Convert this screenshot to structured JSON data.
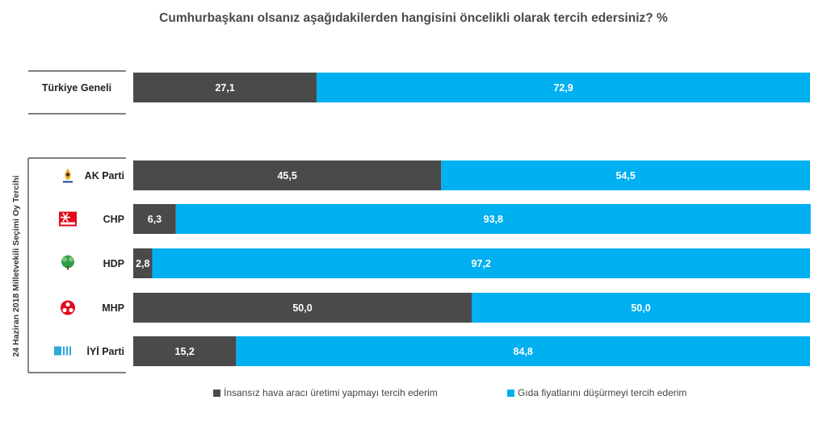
{
  "colors": {
    "drone": "#4a4a4a",
    "food": "#00b0f0",
    "rule": "#555555"
  },
  "chart_data": {
    "type": "bar",
    "stacked": true,
    "orientation": "horizontal",
    "title": "Cumhurbaşkanı olsanız aşağıdakilerden hangisini öncelikli olarak tercih edersiniz? %",
    "group_label": "24 Haziran 2018 Milletvekili Seçimi Oy Tercihi",
    "categories": [
      "Türkiye Geneli",
      "AK Parti",
      "CHP",
      "HDP",
      "MHP",
      "İYİ Parti"
    ],
    "category_icons": [
      "",
      "akparti-logo-icon",
      "chp-logo-icon",
      "hdp-logo-icon",
      "mhp-logo-icon",
      "iyi-logo-icon"
    ],
    "series": [
      {
        "name": "İnsansız hava aracı üretimi yapmayı tercih ederim",
        "values": [
          "27,1",
          "45,5",
          "6,3",
          "2,8",
          "50,0",
          "15,2"
        ]
      },
      {
        "name": "Gıda fiyatlarını düşürmeyi tercih ederim",
        "values": [
          "72,9",
          "54,5",
          "93,8",
          "97,2",
          "50,0",
          "84,8"
        ]
      }
    ],
    "xlim": [
      0,
      100
    ],
    "legend_position": "bottom"
  }
}
